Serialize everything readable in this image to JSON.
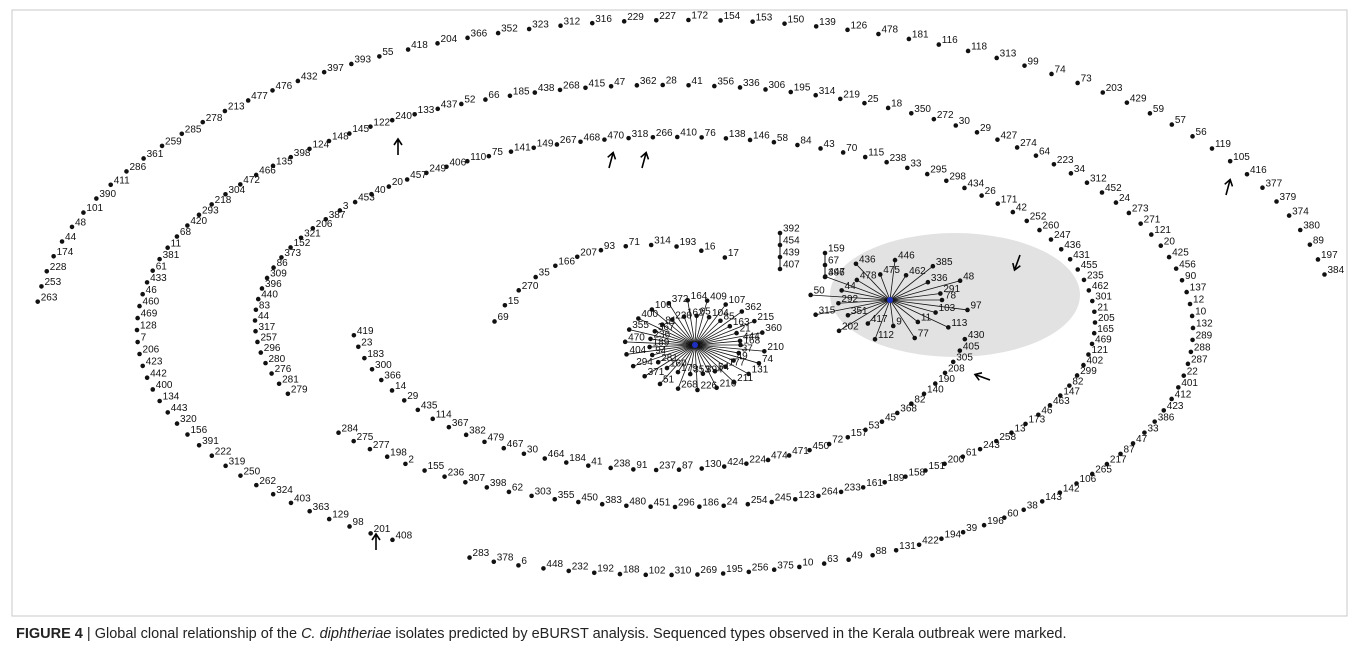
{
  "figure": {
    "rings": [
      [
        "263",
        "253",
        "228",
        "174",
        "44",
        "48",
        "101",
        "390",
        "411",
        "286",
        "361",
        "259",
        "285",
        "278",
        "213",
        "477",
        "476",
        "432",
        "397",
        "393",
        "55",
        "418",
        "204",
        "366",
        "352",
        "323",
        "312",
        "316",
        "229",
        "227",
        "172",
        "154",
        "153",
        "150",
        "139",
        "126",
        "478",
        "181",
        "116",
        "118",
        "313",
        "99",
        "74",
        "73",
        "203",
        "429",
        "59",
        "57",
        "56",
        "119",
        "105",
        "416",
        "377",
        "379",
        "374",
        "380",
        "89",
        "197",
        "384"
      ],
      [
        "408",
        "201",
        "98",
        "129",
        "363",
        "403",
        "324",
        "262",
        "250",
        "319",
        "222",
        "391",
        "156",
        "320",
        "443",
        "134",
        "400",
        "442",
        "423",
        "206",
        "7",
        "128",
        "469",
        "460",
        "46",
        "433",
        "61",
        "381",
        "11",
        "68",
        "420",
        "293",
        "218",
        "304",
        "472",
        "466",
        "135",
        "398",
        "124",
        "148",
        "145",
        "122",
        "240",
        "133",
        "437",
        "52",
        "66",
        "185",
        "438",
        "268",
        "415",
        "47",
        "362",
        "28",
        "41",
        "356",
        "336",
        "306",
        "195",
        "314",
        "219",
        "25",
        "18",
        "350",
        "272",
        "30",
        "29",
        "427",
        "274",
        "64",
        "223",
        "34",
        "312",
        "452",
        "24",
        "273",
        "271",
        "121",
        "20",
        "425",
        "456",
        "90",
        "137",
        "12",
        "10",
        "132",
        "289",
        "288",
        "287",
        "22",
        "401",
        "412",
        "423",
        "386",
        "33",
        "47",
        "87",
        "217",
        "265",
        "106",
        "142",
        "143",
        "38",
        "60",
        "196",
        "39",
        "194",
        "422",
        "131",
        "88",
        "49",
        "63",
        "10",
        "375",
        "256",
        "195",
        "269",
        "310",
        "102",
        "188",
        "192",
        "232",
        "448",
        "6",
        "378",
        "283"
      ],
      [
        "279",
        "281",
        "276",
        "280",
        "296",
        "257",
        "317",
        "44",
        "83",
        "440",
        "396",
        "309",
        "86",
        "373",
        "152",
        "321",
        "206",
        "387",
        "3",
        "453",
        "40",
        "20",
        "457",
        "249",
        "406",
        "110",
        "75",
        "141",
        "149",
        "267",
        "468",
        "470",
        "318",
        "266",
        "410",
        "76",
        "138",
        "146",
        "58",
        "84",
        "43",
        "70",
        "115",
        "238",
        "33",
        "295",
        "298",
        "434",
        "26",
        "171",
        "42",
        "252",
        "260",
        "247",
        "436",
        "431",
        "455",
        "235",
        "462",
        "301",
        "21",
        "205",
        "165",
        "469",
        "121",
        "402",
        "299",
        "82",
        "147",
        "463",
        "46",
        "173",
        "13",
        "258",
        "243",
        "61",
        "200",
        "151",
        "158",
        "189",
        "161",
        "233",
        "264",
        "123",
        "245",
        "254",
        "24",
        "186",
        "296",
        "451",
        "480",
        "383",
        "450",
        "355",
        "303",
        "62",
        "398",
        "307",
        "236",
        "155",
        "2",
        "198",
        "277",
        "275",
        "284"
      ],
      [
        "69",
        "15",
        "270",
        "35",
        "166",
        "207",
        "93",
        "71",
        "314",
        "193",
        "16",
        "17"
      ],
      [
        "419",
        "23",
        "183",
        "300",
        "366",
        "14",
        "29",
        "435",
        "114",
        "367",
        "382",
        "479",
        "467",
        "30",
        "464",
        "184",
        "41",
        "238",
        "91",
        "237",
        "87",
        "130",
        "424",
        "224",
        "474",
        "471",
        "450",
        "72",
        "157",
        "53",
        "45",
        "368",
        "82",
        "140",
        "190",
        "208",
        "305",
        "405",
        "430"
      ]
    ],
    "stacks": [
      [
        "392",
        "454",
        "439",
        "407"
      ],
      [
        "159",
        "67",
        "396"
      ]
    ],
    "clusters": [
      [
        "168",
        "210",
        "37",
        "74",
        "49",
        "131",
        "177",
        "211",
        "54",
        "216",
        "394",
        "226",
        "353",
        "268",
        "179",
        "51",
        "160",
        "371",
        "281",
        "294",
        "94",
        "404",
        "189",
        "470",
        "236",
        "355",
        "367",
        "400",
        "81",
        "106",
        "220",
        "372",
        "162",
        "164",
        "65",
        "409",
        "104",
        "107",
        "85",
        "362",
        "163",
        "215",
        "21",
        "360",
        "444"
      ],
      [
        "78",
        "97",
        "103",
        "113",
        "11",
        "77",
        "9",
        "112",
        "417",
        "202",
        "351",
        "315",
        "292",
        "50",
        "44",
        "447",
        "478",
        "436",
        "475",
        "446",
        "462",
        "385",
        "336",
        "48",
        "291"
      ]
    ]
  },
  "caption": {
    "label": "FIGURE 4",
    "separator": "|",
    "parts": [
      "Global clonal relationship of the ",
      "C. diphtheriae",
      " isolates predicted by eBURST analysis. Sequenced types observed in the Kerala outbreak were marked."
    ]
  }
}
